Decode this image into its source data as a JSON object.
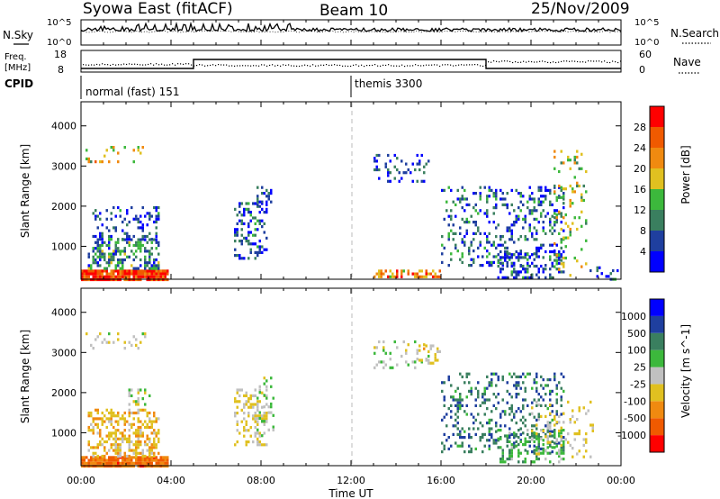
{
  "header": {
    "station": "Syowa East (fitACF)",
    "beam": "Beam 10",
    "date": "25/Nov/2009"
  },
  "panel_labels": {
    "nsky": "N.Sky",
    "nsearch": "N.Search",
    "freq_line1": "Freq.",
    "freq_line2": "[MHz]",
    "nave": "Nave",
    "cpid": "CPID",
    "nsky_ticks": [
      "10^5",
      "10^0"
    ],
    "nsearch_ticks": [
      "10^5",
      "10^0"
    ],
    "freq_ticks": [
      "18",
      "8"
    ],
    "nave_ticks": [
      "60",
      "0"
    ]
  },
  "cpid_modes": [
    {
      "label": "normal (fast) 151",
      "start_hour": 0
    },
    {
      "label": "themis 3300",
      "start_hour": 12
    }
  ],
  "x_axis": {
    "label": "Time UT",
    "ticks": [
      "00:00",
      "04:00",
      "08:00",
      "12:00",
      "16:00",
      "20:00",
      "00:00"
    ],
    "range_hours": [
      0,
      24
    ]
  },
  "y_axis": {
    "label": "Slant Range [km]",
    "ticks": [
      "1000",
      "2000",
      "3000",
      "4000"
    ],
    "range_km": [
      180,
      4600
    ]
  },
  "colors": {
    "power": [
      "#0000ff",
      "#1f3f9f",
      "#3a7f5f",
      "#3cb83c",
      "#e0c020",
      "#f08a10",
      "#f05a00",
      "#ff0000"
    ],
    "velocity": [
      "#ff0000",
      "#f05a00",
      "#f08a10",
      "#e0c020",
      "#c0c0c0",
      "#3cb83c",
      "#3a7f5f",
      "#1f3f9f",
      "#0000ff"
    ]
  },
  "chart_data": [
    {
      "type": "heatmap",
      "name": "Power",
      "colorbar_label": "Power [dB]",
      "colorbar_ticks": [
        "4",
        "8",
        "12",
        "16",
        "20",
        "24",
        "28"
      ],
      "colorbar_range": [
        0,
        32
      ],
      "regions": [
        {
          "t": [
            0.0,
            3.9
          ],
          "r": [
            200,
            420
          ],
          "v": 28,
          "d": 0.95
        },
        {
          "t": [
            0.3,
            3.5
          ],
          "r": [
            420,
            1200
          ],
          "v": 10,
          "d": 0.45
        },
        {
          "t": [
            0.5,
            3.5
          ],
          "r": [
            1200,
            2000
          ],
          "v": 6,
          "d": 0.25
        },
        {
          "t": [
            0.2,
            3.0
          ],
          "r": [
            3100,
            3500
          ],
          "v": 18,
          "d": 0.15
        },
        {
          "t": [
            6.8,
            8.3
          ],
          "r": [
            700,
            2100
          ],
          "v": 6,
          "d": 0.3
        },
        {
          "t": [
            7.8,
            8.5
          ],
          "r": [
            2000,
            2500
          ],
          "v": 5,
          "d": 0.35
        },
        {
          "t": [
            13.0,
            15.5
          ],
          "r": [
            2600,
            3300
          ],
          "v": 5,
          "d": 0.18
        },
        {
          "t": [
            13.0,
            16.0
          ],
          "r": [
            250,
            420
          ],
          "v": 22,
          "d": 0.6
        },
        {
          "t": [
            16.0,
            21.5
          ],
          "r": [
            500,
            2500
          ],
          "v": 7,
          "d": 0.22
        },
        {
          "t": [
            18.5,
            21.5
          ],
          "r": [
            200,
            900
          ],
          "v": 6,
          "d": 0.35
        },
        {
          "t": [
            21.0,
            22.5
          ],
          "r": [
            250,
            3400
          ],
          "v": 16,
          "d": 0.12
        },
        {
          "t": [
            22.5,
            23.9
          ],
          "r": [
            200,
            500
          ],
          "v": 6,
          "d": 0.2
        }
      ]
    },
    {
      "type": "heatmap",
      "name": "Velocity",
      "colorbar_label": "Velocity [m s^-1]",
      "colorbar_ticks": [
        "-1000",
        "-500",
        "-100",
        "-25",
        "25",
        "100",
        "500",
        "1000"
      ],
      "colorbar_range": [
        -1200,
        1200
      ],
      "regions": [
        {
          "t": [
            0.0,
            3.9
          ],
          "r": [
            200,
            420
          ],
          "v": -700,
          "d": 0.95
        },
        {
          "t": [
            0.3,
            3.5
          ],
          "r": [
            420,
            1600
          ],
          "v": -300,
          "d": 0.5
        },
        {
          "t": [
            2.0,
            3.3
          ],
          "r": [
            1700,
            2100
          ],
          "v": 0,
          "d": 0.3
        },
        {
          "t": [
            0.2,
            3.0
          ],
          "r": [
            3100,
            3500
          ],
          "v": -100,
          "d": 0.15
        },
        {
          "t": [
            6.8,
            8.3
          ],
          "r": [
            700,
            2100
          ],
          "v": -150,
          "d": 0.35
        },
        {
          "t": [
            7.8,
            8.6
          ],
          "r": [
            900,
            2400
          ],
          "v": 80,
          "d": 0.25
        },
        {
          "t": [
            13.0,
            15.5
          ],
          "r": [
            2600,
            3300
          ],
          "v": 50,
          "d": 0.18
        },
        {
          "t": [
            15.0,
            16.0
          ],
          "r": [
            2700,
            3200
          ],
          "v": -200,
          "d": 0.3
        },
        {
          "t": [
            16.0,
            21.5
          ],
          "r": [
            500,
            2500
          ],
          "v": 600,
          "d": 0.22
        },
        {
          "t": [
            18.5,
            21.5
          ],
          "r": [
            300,
            1100
          ],
          "v": 300,
          "d": 0.35
        },
        {
          "t": [
            20.0,
            22.8
          ],
          "r": [
            400,
            1800
          ],
          "v": -150,
          "d": 0.15
        }
      ]
    }
  ]
}
